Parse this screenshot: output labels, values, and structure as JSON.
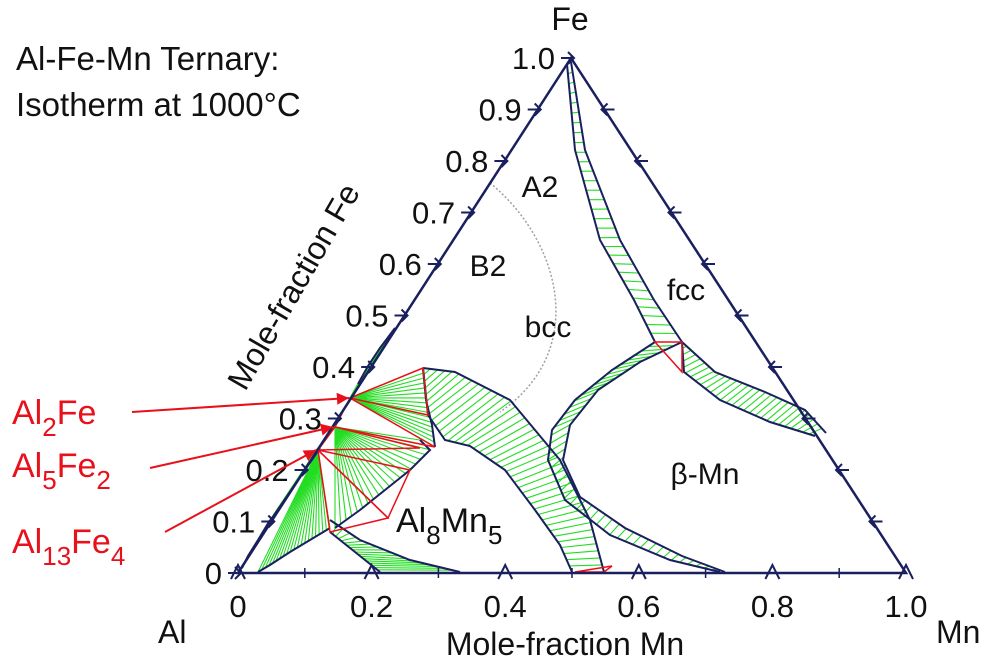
{
  "title": {
    "line1": "Al-Fe-Mn Ternary:",
    "line2": "Isotherm at 1000°C"
  },
  "chart_data": {
    "type": "ternary_phase_diagram",
    "components": {
      "left": "Al",
      "right": "Mn",
      "top": "Fe"
    },
    "axis_labels": {
      "bottom": "Mole-fraction Mn",
      "left": "Mole-fraction Fe"
    },
    "ticks": {
      "mn": [
        "0",
        "0.2",
        "0.4",
        "0.6",
        "0.8",
        "1.0"
      ],
      "fe": [
        "0",
        "0.1",
        "0.2",
        "0.3",
        "0.4",
        "0.5",
        "0.6",
        "0.7",
        "0.8",
        "0.9",
        "1.0"
      ]
    },
    "phase_labels": {
      "a2": "A2",
      "b2": "B2",
      "bcc": "bcc",
      "fcc": "fcc",
      "beta_mn": "β-Mn",
      "al8mn5": {
        "base1": "Al",
        "sub1": "8",
        "base2": "Mn",
        "sub2": "5"
      }
    },
    "compounds": [
      {
        "base1": "Al",
        "sub1": "2",
        "base2": "Fe",
        "sub2": ""
      },
      {
        "base1": "Al",
        "sub1": "5",
        "base2": "Fe",
        "sub2": "2"
      },
      {
        "base1": "Al",
        "sub1": "13",
        "base2": "Fe",
        "sub2": "4"
      }
    ],
    "colors": {
      "frame": "#1a1f5e",
      "tieline": "#22dd22",
      "red": "#e8101a",
      "orderline": "#a0a0a0"
    }
  }
}
